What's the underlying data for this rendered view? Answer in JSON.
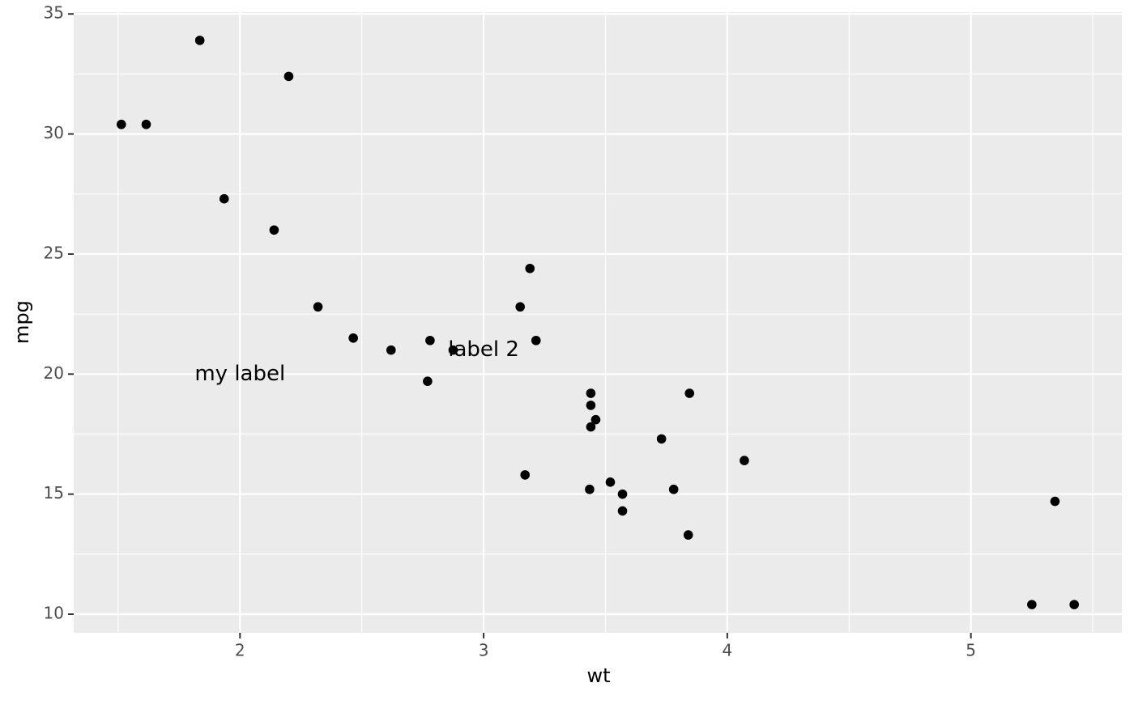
{
  "chart_data": {
    "type": "scatter",
    "x_label": "wt",
    "y_label": "mpg",
    "x": [
      2.62,
      2.875,
      2.32,
      3.215,
      3.44,
      3.46,
      3.57,
      3.19,
      3.15,
      3.44,
      3.44,
      4.07,
      3.73,
      3.78,
      5.25,
      5.424,
      5.345,
      2.2,
      1.615,
      1.835,
      2.465,
      3.52,
      3.435,
      3.84,
      3.845,
      1.935,
      2.14,
      1.513,
      3.17,
      2.77,
      3.57,
      2.78
    ],
    "values": [
      21.0,
      21.0,
      22.8,
      21.4,
      18.7,
      18.1,
      14.3,
      24.4,
      22.8,
      19.2,
      17.8,
      16.4,
      17.3,
      15.2,
      10.4,
      10.4,
      14.7,
      32.4,
      30.4,
      33.9,
      21.5,
      15.5,
      15.2,
      13.3,
      19.2,
      27.3,
      26.0,
      30.4,
      15.8,
      19.7,
      15.0,
      21.4
    ],
    "color": "#000000",
    "xlim": [
      1.3175,
      5.6195
    ],
    "ylim": [
      9.225,
      35.075
    ],
    "xticks": [
      2,
      3,
      4,
      5
    ],
    "yticks": [
      10,
      15,
      20,
      25,
      30,
      35
    ],
    "x_minor_grid": [
      1.5,
      2.5,
      3.5,
      4.5,
      5.5
    ],
    "y_minor_grid": [
      12.5,
      17.5,
      22.5,
      27.5,
      32.5
    ],
    "grid": true,
    "annotations": [
      {
        "text": "my label",
        "x": 2,
        "y": 20
      },
      {
        "text": "label 2",
        "x": 3,
        "y": 21
      }
    ]
  }
}
